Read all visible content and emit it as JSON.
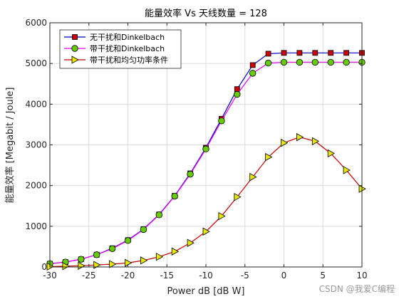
{
  "chart_data": {
    "type": "line",
    "title": "能量效率 Vs 天线数量 = 128",
    "xlabel": "Power dB [dB W]",
    "ylabel": "能量效率 [Megabit / Joule]",
    "xlim": [
      -30,
      10
    ],
    "ylim": [
      0,
      6000
    ],
    "xticks": [
      -30,
      -25,
      -20,
      -15,
      -10,
      -5,
      0,
      5,
      10
    ],
    "yticks": [
      0,
      1000,
      2000,
      3000,
      4000,
      5000,
      6000
    ],
    "grid": true,
    "legend_position": "top-left",
    "series": [
      {
        "name": "无干扰和Dinkelbach",
        "line_color": "#0000cc",
        "marker": "square",
        "marker_color": "#cc0000",
        "x": [
          -30,
          -28,
          -26,
          -24,
          -22,
          -20,
          -18,
          -16,
          -14,
          -12,
          -10,
          -8,
          -6,
          -4,
          -2,
          0,
          2,
          4,
          6,
          8,
          10
        ],
        "y": [
          80,
          120,
          190,
          300,
          460,
          660,
          930,
          1290,
          1750,
          2300,
          2930,
          3640,
          4370,
          4960,
          5240,
          5260,
          5260,
          5260,
          5260,
          5260,
          5260
        ]
      },
      {
        "name": "带干扰和Dinkelbach",
        "line_color": "#ee00ee",
        "marker": "circle",
        "marker_color": "#66cc00",
        "x": [
          -30,
          -28,
          -26,
          -24,
          -22,
          -20,
          -18,
          -16,
          -14,
          -12,
          -10,
          -8,
          -6,
          -4,
          -2,
          0,
          2,
          4,
          6,
          8,
          10
        ],
        "y": [
          80,
          120,
          190,
          300,
          450,
          650,
          920,
          1280,
          1740,
          2280,
          2900,
          3590,
          4240,
          4760,
          5010,
          5030,
          5030,
          5030,
          5030,
          5030,
          5030
        ]
      },
      {
        "name": "带干扰和均匀功率条件",
        "line_color": "#cc0000",
        "marker": "triangle-right",
        "marker_color": "#e6e600",
        "x": [
          -30,
          -28,
          -26,
          -24,
          -22,
          -20,
          -18,
          -16,
          -14,
          -12,
          -10,
          -8,
          -6,
          -4,
          -2,
          0,
          2,
          4,
          6,
          8,
          10
        ],
        "y": [
          10,
          20,
          30,
          50,
          70,
          100,
          160,
          250,
          380,
          590,
          870,
          1250,
          1720,
          2210,
          2700,
          3050,
          3190,
          3090,
          2790,
          2380,
          1920
        ]
      }
    ]
  },
  "watermark": "CSDN @我爱C编程"
}
